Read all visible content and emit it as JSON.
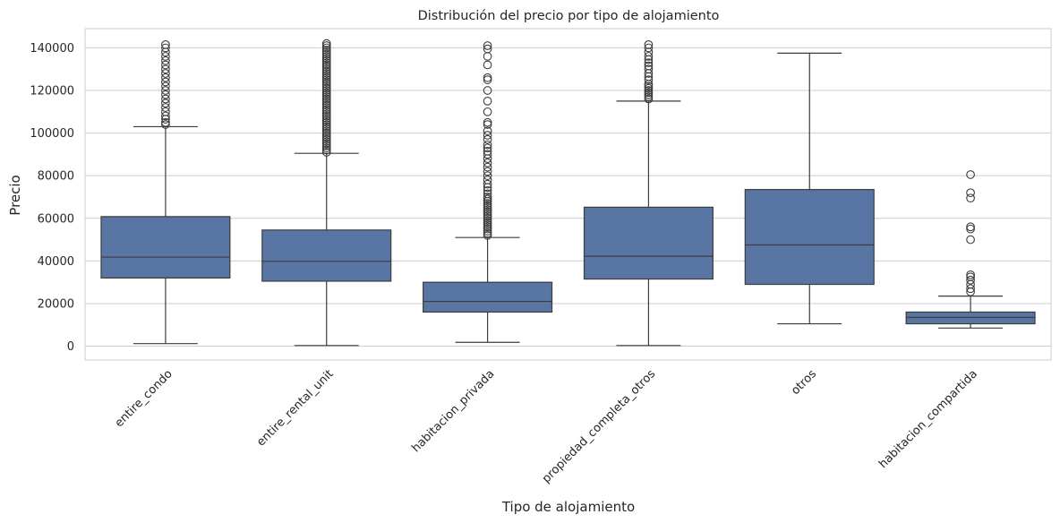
{
  "chart_data": {
    "type": "boxplot",
    "title": "Distribución del precio por tipo de alojamiento",
    "xlabel": "Tipo de alojamiento",
    "ylabel": "Precio",
    "ylim": [
      -6500,
      149000
    ],
    "yticks": [
      0,
      20000,
      40000,
      60000,
      80000,
      100000,
      120000,
      140000
    ],
    "grid": true,
    "colors": {
      "box": "#5875a4",
      "line": "#3c3c3c",
      "grid": "#cccccc",
      "frame": "#cccccc"
    },
    "categories": [
      "entire_condo",
      "entire_rental_unit",
      "habitacion_privada",
      "propiedad_completa_otros",
      "otros",
      "habitacion_compartida"
    ],
    "boxes": [
      {
        "category": "entire_condo",
        "whisker_low": 1200,
        "q1": 32000,
        "median": 41800,
        "q3": 60800,
        "whisker_high": 103000,
        "outliers": [
          104000,
          105000,
          106500,
          108000,
          110000,
          112000,
          114000,
          116000,
          118000,
          120000,
          122000,
          124000,
          126000,
          128000,
          130000,
          132000,
          134000,
          136000,
          138000,
          140000,
          141500
        ]
      },
      {
        "category": "entire_rental_unit",
        "whisker_low": 300,
        "q1": 30500,
        "median": 39800,
        "q3": 54500,
        "whisker_high": 90500,
        "outliers": [
          91000,
          92000,
          93000,
          94000,
          95000,
          96000,
          97000,
          98000,
          99000,
          100000,
          101000,
          102000,
          103000,
          104000,
          105000,
          106000,
          107000,
          108000,
          109000,
          110000,
          111000,
          112000,
          113000,
          114000,
          115000,
          116000,
          117000,
          118000,
          119000,
          120000,
          121000,
          122000,
          123000,
          124000,
          125000,
          126000,
          127000,
          128000,
          129000,
          130000,
          131000,
          132000,
          133000,
          134000,
          135000,
          136000,
          137000,
          138000,
          139000,
          140000,
          141000,
          142000
        ]
      },
      {
        "category": "habitacion_privada",
        "whisker_low": 1800,
        "q1": 16000,
        "median": 21000,
        "q3": 30000,
        "whisker_high": 51000,
        "outliers": [
          52000,
          53000,
          54000,
          55000,
          56000,
          57000,
          58000,
          59000,
          60000,
          61000,
          62000,
          63000,
          64000,
          65000,
          66000,
          67000,
          68000,
          69000,
          70000,
          71500,
          73000,
          74500,
          76000,
          78000,
          80000,
          82000,
          84000,
          86000,
          88000,
          90000,
          91500,
          93000,
          94500,
          97000,
          99000,
          101000,
          104000,
          105000,
          110000,
          115000,
          120000,
          125000,
          126000,
          132000,
          136000,
          139500,
          141000
        ]
      },
      {
        "category": "propiedad_completa_otros",
        "whisker_low": 300,
        "q1": 31500,
        "median": 42200,
        "q3": 65200,
        "whisker_high": 115000,
        "outliers": [
          116000,
          117000,
          118000,
          119000,
          120000,
          121000,
          122000,
          123000,
          125000,
          126500,
          128000,
          130000,
          131500,
          133000,
          134500,
          136000,
          138000,
          140000,
          141500
        ]
      },
      {
        "category": "otros",
        "whisker_low": 10500,
        "q1": 29000,
        "median": 47500,
        "q3": 73500,
        "whisker_high": 137500,
        "outliers": []
      },
      {
        "category": "habitacion_compartida",
        "whisker_low": 8500,
        "q1": 10500,
        "median": 13500,
        "q3": 16000,
        "whisker_high": 23500,
        "outliers": [
          25500,
          27000,
          29000,
          31000,
          32500,
          33500,
          50000,
          55000,
          56000,
          69500,
          72000,
          80500
        ]
      }
    ]
  }
}
